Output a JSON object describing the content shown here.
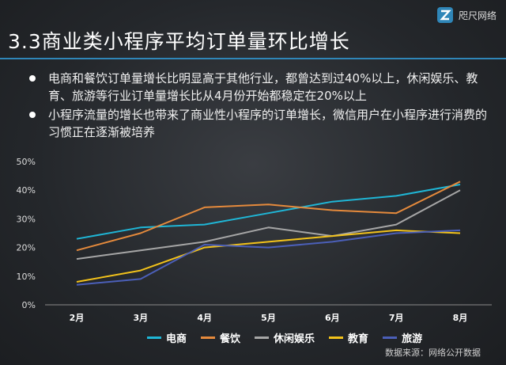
{
  "header": {
    "title": "3.3商业类小程序平均订单量环比增长",
    "logo_text": "咫尺网络",
    "logo_icon": "z-logo-icon"
  },
  "bullets": [
    "电商和餐饮订单量增长比明显高于其他行业，都曾达到过40%以上，休闲娱乐、教育、旅游等行业订单量增长比从4月份开始都稳定在20%以上",
    "小程序流量的增长也带来了商业性小程序的订单增长，微信用户在小程序进行消费的习惯正在逐渐被培养"
  ],
  "source": "数据来源：网络公开数据",
  "chart_data": {
    "type": "line",
    "categories": [
      "2月",
      "3月",
      "4月",
      "5月",
      "6月",
      "7月",
      "8月"
    ],
    "ylim": [
      0,
      50
    ],
    "yticks": [
      "0%",
      "10%",
      "20%",
      "30%",
      "40%",
      "50%"
    ],
    "grid": true,
    "legend_position": "bottom",
    "series": [
      {
        "name": "电商",
        "color": "#1fb6d6",
        "values": [
          23,
          27,
          28,
          32,
          36,
          38,
          42
        ]
      },
      {
        "name": "餐饮",
        "color": "#e58a3c",
        "values": [
          19,
          25,
          34,
          35,
          33,
          32,
          43
        ]
      },
      {
        "name": "休闲娱乐",
        "color": "#a6a6a6",
        "values": [
          16,
          19,
          22,
          27,
          24,
          28,
          40
        ]
      },
      {
        "name": "教育",
        "color": "#f2c21b",
        "values": [
          8,
          12,
          20,
          22,
          24,
          26,
          25
        ]
      },
      {
        "name": "旅游",
        "color": "#4b5fb8",
        "values": [
          7,
          9,
          21,
          20,
          22,
          25,
          26
        ]
      }
    ]
  }
}
